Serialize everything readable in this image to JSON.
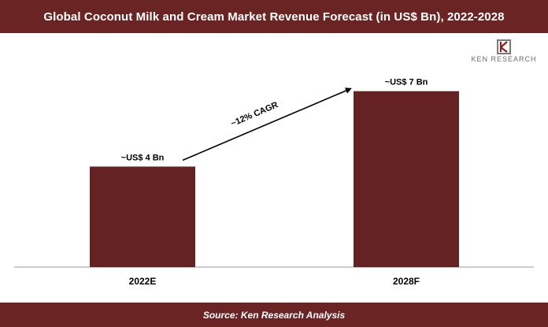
{
  "header": {
    "title": "Global Coconut Milk and Cream Market Revenue Forecast (in US$ Bn), 2022-2028"
  },
  "footer": {
    "source": "Source: Ken Research Analysis"
  },
  "logo": {
    "text": "KEN RESEARCH"
  },
  "colors": {
    "bar": "#652222",
    "header": "#6a2424",
    "axis": "#000000"
  },
  "chart_data": {
    "type": "bar",
    "categories": [
      "2022E",
      "2028F"
    ],
    "values": [
      4,
      7
    ],
    "data_labels": [
      "~US$ 4 Bn",
      "~US$ 7 Bn"
    ],
    "annotation": "~12% CAGR",
    "ylim": [
      0,
      7.9
    ],
    "grid": false
  }
}
